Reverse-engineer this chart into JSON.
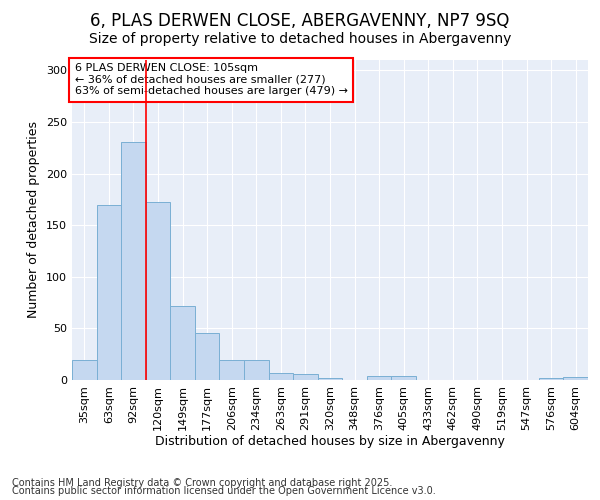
{
  "title_line1": "6, PLAS DERWEN CLOSE, ABERGAVENNY, NP7 9SQ",
  "title_line2": "Size of property relative to detached houses in Abergavenny",
  "xlabel": "Distribution of detached houses by size in Abergavenny",
  "ylabel": "Number of detached properties",
  "categories": [
    "35sqm",
    "63sqm",
    "92sqm",
    "120sqm",
    "149sqm",
    "177sqm",
    "206sqm",
    "234sqm",
    "263sqm",
    "291sqm",
    "320sqm",
    "348sqm",
    "376sqm",
    "405sqm",
    "433sqm",
    "462sqm",
    "490sqm",
    "519sqm",
    "547sqm",
    "576sqm",
    "604sqm"
  ],
  "values": [
    19,
    170,
    231,
    172,
    72,
    46,
    19,
    19,
    7,
    6,
    2,
    0,
    4,
    4,
    0,
    0,
    0,
    0,
    0,
    2,
    3
  ],
  "bar_color": "#c5d8f0",
  "bar_edge_color": "#7aafd4",
  "red_line_x": 2.5,
  "annotation_text_l1": "6 PLAS DERWEN CLOSE: 105sqm",
  "annotation_text_l2": "← 36% of detached houses are smaller (277)",
  "annotation_text_l3": "63% of semi-detached houses are larger (479) →",
  "footer_line1": "Contains HM Land Registry data © Crown copyright and database right 2025.",
  "footer_line2": "Contains public sector information licensed under the Open Government Licence v3.0.",
  "ylim_max": 310,
  "bg_color": "#ffffff",
  "plot_bg_color": "#e8eef8",
  "grid_color": "#ffffff",
  "title_fontsize": 12,
  "subtitle_fontsize": 10,
  "axis_label_fontsize": 9,
  "tick_fontsize": 8,
  "annotation_fontsize": 8,
  "footer_fontsize": 7
}
